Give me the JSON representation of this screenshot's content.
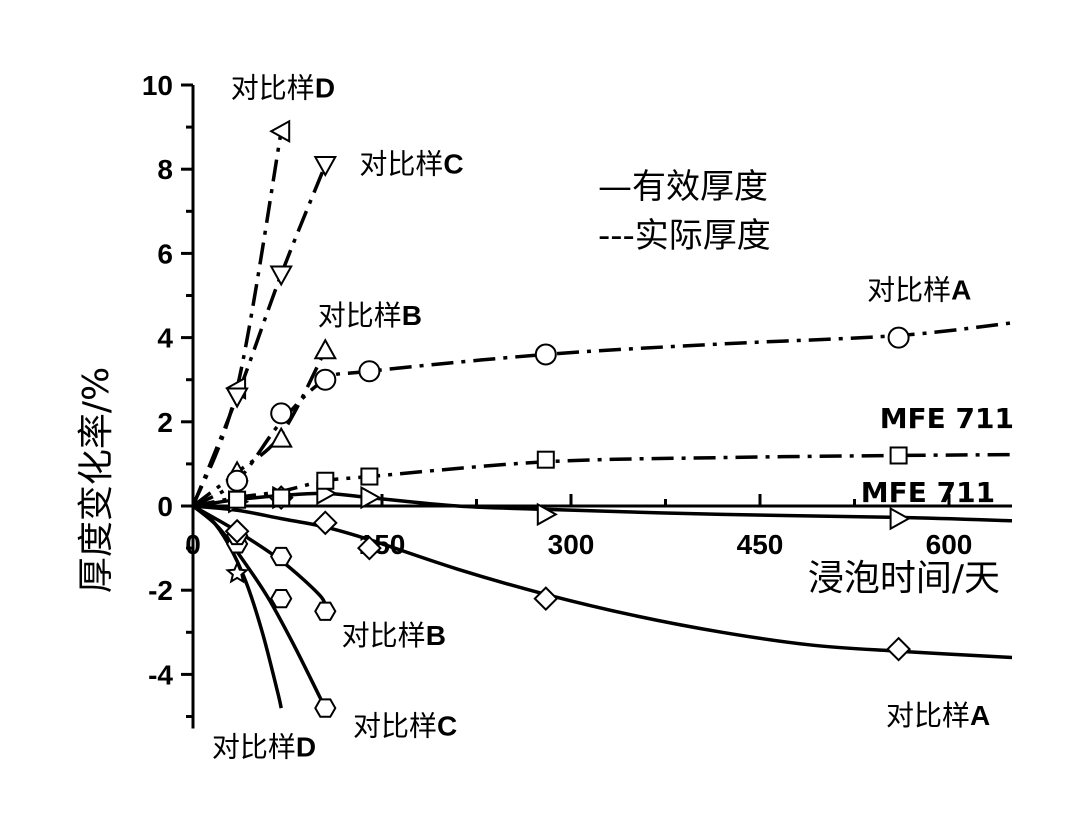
{
  "chart_data": {
    "type": "line",
    "xlabel": "浸泡时间/天",
    "ylabel": "厚度变化率/%",
    "xlim": [
      0,
      650
    ],
    "ylim": [
      -5,
      10
    ],
    "xticks": [
      {
        "value": 0,
        "label": "0"
      },
      {
        "value": 150,
        "label": "150"
      },
      {
        "value": 300,
        "label": "300"
      },
      {
        "value": 450,
        "label": "450"
      },
      {
        "value": 600,
        "label": "600"
      }
    ],
    "yticks": [
      {
        "value": 10,
        "label": "10"
      },
      {
        "value": 8,
        "label": "8"
      },
      {
        "value": 6,
        "label": "6"
      },
      {
        "value": 4,
        "label": "4"
      },
      {
        "value": 2,
        "label": "2"
      },
      {
        "value": 0,
        "label": "0"
      },
      {
        "value": -2,
        "label": "-2"
      },
      {
        "value": -4,
        "label": "-4"
      }
    ],
    "legend": {
      "placement": "upper-center",
      "entries": [
        {
          "style": "solid",
          "label": "—有效厚度"
        },
        {
          "style": "dashdot",
          "label": "---实际厚度"
        }
      ]
    },
    "series": [
      {
        "name": "对比样D",
        "kind": "effective",
        "marker": "star",
        "curve": [
          [
            0,
            0
          ],
          [
            14,
            -0.3
          ],
          [
            28,
            -0.9
          ],
          [
            42,
            -1.8
          ],
          [
            55,
            -3.0
          ],
          [
            67,
            -4.4
          ],
          [
            70,
            -4.8
          ]
        ],
        "points": [
          [
            35,
            -1.6
          ]
        ]
      },
      {
        "name": "对比样C",
        "kind": "effective",
        "marker": "hexagon",
        "curve": [
          [
            0,
            0
          ],
          [
            20,
            -0.5
          ],
          [
            40,
            -1.3
          ],
          [
            60,
            -2.2
          ],
          [
            80,
            -3.3
          ],
          [
            100,
            -4.5
          ],
          [
            105,
            -4.8
          ]
        ],
        "points": [
          [
            35,
            -0.9
          ],
          [
            70,
            -2.2
          ],
          [
            105,
            -4.8
          ]
        ]
      },
      {
        "name": "对比样B",
        "kind": "effective",
        "marker": "hexagon",
        "curve": [
          [
            0,
            0
          ],
          [
            35,
            -0.6
          ],
          [
            70,
            -1.3
          ],
          [
            100,
            -2.1
          ],
          [
            105,
            -2.4
          ]
        ],
        "points": [
          [
            35,
            -0.7
          ],
          [
            70,
            -1.2
          ],
          [
            105,
            -2.5
          ]
        ]
      },
      {
        "name": "对比样A",
        "kind": "effective",
        "marker": "diamond",
        "curve": [
          [
            0,
            0
          ],
          [
            35,
            -0.1
          ],
          [
            70,
            -0.3
          ],
          [
            105,
            -0.5
          ],
          [
            140,
            -0.8
          ],
          [
            210,
            -1.5
          ],
          [
            280,
            -2.1
          ],
          [
            350,
            -2.6
          ],
          [
            420,
            -3.0
          ],
          [
            490,
            -3.3
          ],
          [
            560,
            -3.45
          ],
          [
            650,
            -3.6
          ]
        ],
        "points": [
          [
            35,
            -0.6
          ],
          [
            70,
            0.2
          ],
          [
            105,
            -0.4
          ],
          [
            140,
            -1.0
          ],
          [
            280,
            -2.2
          ],
          [
            560,
            -3.4
          ]
        ]
      },
      {
        "name": "MFE 711",
        "kind": "effective",
        "marker": "triangle-right",
        "curve": [
          [
            0,
            0
          ],
          [
            35,
            0.15
          ],
          [
            70,
            0.25
          ],
          [
            105,
            0.3
          ],
          [
            140,
            0.2
          ],
          [
            210,
            0.0
          ],
          [
            280,
            -0.08
          ],
          [
            420,
            -0.2
          ],
          [
            560,
            -0.27
          ],
          [
            650,
            -0.35
          ]
        ],
        "points": [
          [
            35,
            0.1
          ],
          [
            70,
            0.2
          ],
          [
            105,
            0.3
          ],
          [
            140,
            0.2
          ],
          [
            280,
            -0.2
          ],
          [
            560,
            -0.3
          ]
        ]
      },
      {
        "name": "对比样D",
        "kind": "actual",
        "marker": "triangle-left",
        "curve": [
          [
            0,
            0
          ],
          [
            35,
            2.8
          ],
          [
            70,
            8.9
          ]
        ],
        "points": [
          [
            35,
            2.8
          ],
          [
            70,
            8.9
          ]
        ]
      },
      {
        "name": "对比样C",
        "kind": "actual",
        "marker": "triangle-down",
        "curve": [
          [
            0,
            0
          ],
          [
            35,
            2.6
          ],
          [
            70,
            5.5
          ],
          [
            105,
            8.1
          ]
        ],
        "points": [
          [
            35,
            2.6
          ],
          [
            70,
            5.5
          ],
          [
            105,
            8.1
          ]
        ]
      },
      {
        "name": "对比样B",
        "kind": "actual",
        "marker": "triangle-up",
        "curve": [
          [
            0,
            0
          ],
          [
            35,
            0.8
          ],
          [
            70,
            1.7
          ],
          [
            105,
            3.7
          ]
        ],
        "points": [
          [
            35,
            0.8
          ],
          [
            70,
            1.6
          ],
          [
            105,
            3.7
          ]
        ]
      },
      {
        "name": "对比样A",
        "kind": "actual",
        "marker": "circle",
        "curve": [
          [
            0,
            0
          ],
          [
            35,
            0.6
          ],
          [
            70,
            2.0
          ],
          [
            105,
            3.0
          ],
          [
            140,
            3.2
          ],
          [
            280,
            3.6
          ],
          [
            420,
            3.85
          ],
          [
            560,
            4.05
          ],
          [
            650,
            4.35
          ]
        ],
        "points": [
          [
            35,
            0.6
          ],
          [
            70,
            2.2
          ],
          [
            105,
            3.0
          ],
          [
            140,
            3.2
          ],
          [
            280,
            3.6
          ],
          [
            560,
            4.0
          ]
        ]
      },
      {
        "name": "MFE 711",
        "kind": "actual",
        "marker": "square",
        "curve": [
          [
            0,
            0
          ],
          [
            35,
            0.2
          ],
          [
            70,
            0.35
          ],
          [
            105,
            0.6
          ],
          [
            140,
            0.7
          ],
          [
            280,
            1.05
          ],
          [
            420,
            1.15
          ],
          [
            560,
            1.2
          ],
          [
            650,
            1.22
          ]
        ],
        "points": [
          [
            35,
            0.15
          ],
          [
            70,
            0.2
          ],
          [
            105,
            0.6
          ],
          [
            140,
            0.7
          ],
          [
            280,
            1.1
          ],
          [
            560,
            1.2
          ]
        ]
      }
    ],
    "annotations": [
      {
        "text": "对比样D",
        "x": 30,
        "y": 9.7,
        "anchor": "start"
      },
      {
        "text": "对比样C",
        "x": 132,
        "y": 7.9,
        "anchor": "start"
      },
      {
        "text": "对比样B",
        "x": 99,
        "y": 4.3,
        "anchor": "start"
      },
      {
        "text": "对比样A",
        "x": 535,
        "y": 4.9,
        "anchor": "start"
      },
      {
        "text": "MFE 711",
        "x": 545,
        "y": 1.85,
        "anchor": "start"
      },
      {
        "text": "MFE 711",
        "x": 530,
        "y": 0.1,
        "anchor": "start"
      },
      {
        "text": "对比样B",
        "x": 118,
        "y": -3.3,
        "anchor": "start"
      },
      {
        "text": "对比样C",
        "x": 127,
        "y": -5.45,
        "anchor": "start"
      },
      {
        "text": "对比样D",
        "x": 15,
        "y": -5.95,
        "anchor": "start"
      },
      {
        "text": "对比样A",
        "x": 550,
        "y": -5.2,
        "anchor": "start"
      }
    ]
  }
}
